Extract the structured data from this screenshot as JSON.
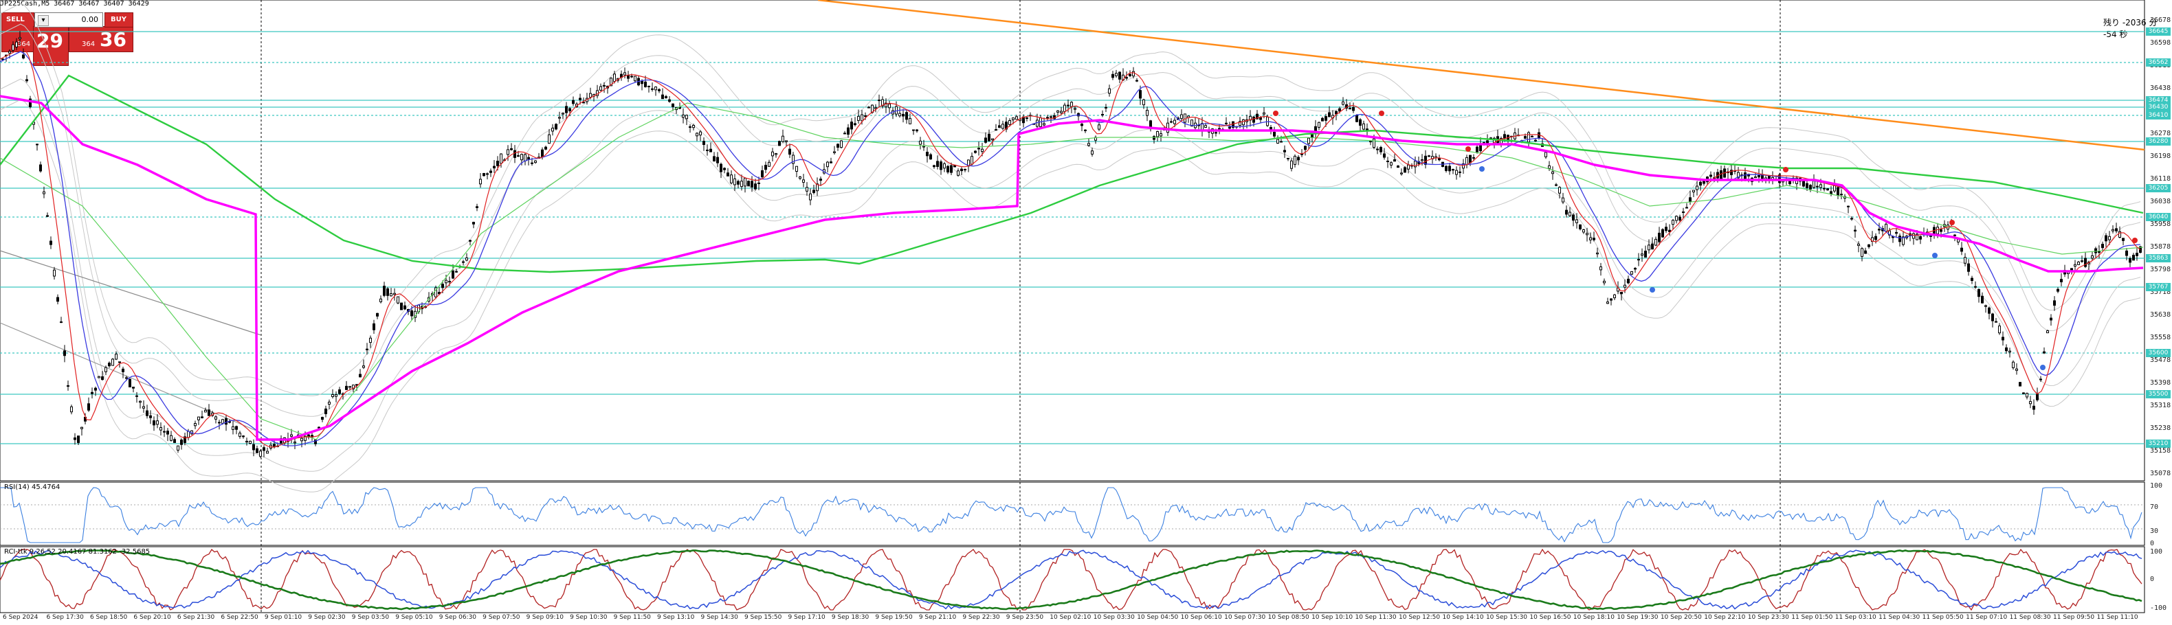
{
  "window": {
    "symbol_info": "JP225Cash,M5  36467 36467 36407 36429",
    "countdown": "残り -2036 分 -54 秒"
  },
  "trade_panel": {
    "sell_label": "SELL",
    "buy_label": "BUY",
    "lot_value": "0.00",
    "sell_price_prefix": "364",
    "sell_price_big": "29",
    "buy_price_prefix": "364",
    "buy_price_big": "36",
    "sell_color": "#d42a2a",
    "buy_color": "#d42a2a"
  },
  "price_axis": {
    "ticks": [
      "36678",
      "36598",
      "36518",
      "36438",
      "36358",
      "36278",
      "36198",
      "36118",
      "36038",
      "35958",
      "35878",
      "35798",
      "35718",
      "35638",
      "35558",
      "35478",
      "35398",
      "35318",
      "35238",
      "35158",
      "35078"
    ],
    "tags": [
      "36645",
      "36562",
      "36474",
      "36430",
      "36410",
      "36280",
      "36205",
      "36040",
      "35863",
      "35767",
      "35600",
      "35500",
      "35210"
    ]
  },
  "time_axis": {
    "labels": [
      "6 Sep 2024",
      "6 Sep 17:30",
      "6 Sep 18:50",
      "6 Sep 20:10",
      "6 Sep 21:30",
      "6 Sep 22:50",
      "9 Sep 01:10",
      "9 Sep 02:30",
      "9 Sep 03:50",
      "9 Sep 05:10",
      "9 Sep 06:30",
      "9 Sep 07:50",
      "9 Sep 09:10",
      "9 Sep 10:30",
      "9 Sep 11:50",
      "9 Sep 13:10",
      "9 Sep 14:30",
      "9 Sep 15:50",
      "9 Sep 17:10",
      "9 Sep 18:30",
      "9 Sep 19:50",
      "9 Sep 21:10",
      "9 Sep 22:30",
      "9 Sep 23:50",
      "10 Sep 02:10",
      "10 Sep 03:30",
      "10 Sep 04:50",
      "10 Sep 06:10",
      "10 Sep 07:30",
      "10 Sep 08:50",
      "10 Sep 10:10",
      "10 Sep 11:30",
      "10 Sep 12:50",
      "10 Sep 14:10",
      "10 Sep 15:30",
      "10 Sep 16:50",
      "10 Sep 18:10",
      "10 Sep 19:30",
      "10 Sep 20:50",
      "10 Sep 22:10",
      "10 Sep 23:30",
      "11 Sep 01:50",
      "11 Sep 03:10",
      "11 Sep 04:30",
      "11 Sep 05:50",
      "11 Sep 07:10",
      "11 Sep 08:30",
      "11 Sep 09:50",
      "11 Sep 11:10"
    ]
  },
  "rsi_pane": {
    "label": "RSI(14) 45.4764",
    "ticks": [
      "100",
      "70",
      "30",
      "0"
    ],
    "line_color": "#3a7fe0"
  },
  "stoch_pane": {
    "label": "RCI-ttk 9,26,52 20.4167 81.3162 -32.5685",
    "ticks": [
      "100",
      "0",
      "-100"
    ],
    "colors": [
      "#b22222",
      "#2a4dd8",
      "#1a7a1a"
    ]
  },
  "colors": {
    "ma_magenta": "#ff00ff",
    "ma_green": "#2ecc40",
    "trend_orange": "#ff8c1a",
    "band_gray": "#c8c8c8",
    "hline_teal": "#3cc7c0",
    "ma_blue": "#3a3ae0",
    "ma_red": "#e02020"
  }
}
